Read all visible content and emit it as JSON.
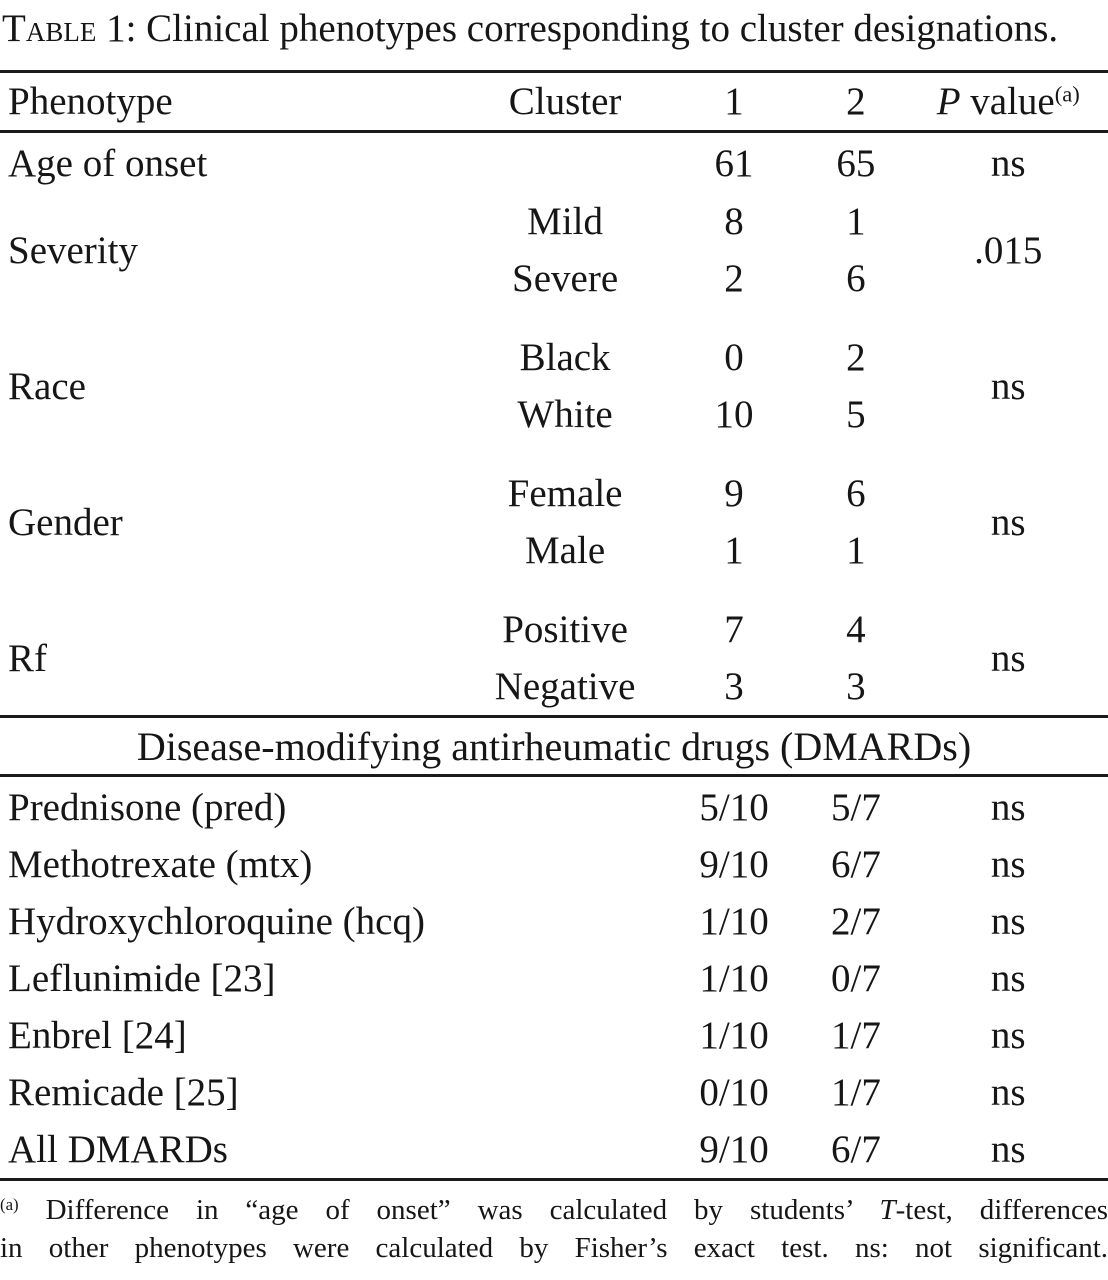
{
  "title": {
    "label": "Table 1:",
    "caption": " Clinical phenotypes corresponding to cluster designations."
  },
  "header": {
    "phenotype": "Phenotype",
    "cluster": "Cluster",
    "col1": "1",
    "col2": "2",
    "pvalue_p": "P",
    "pvalue_rest": " value",
    "pvalue_sup": "(a)"
  },
  "phenotypes": [
    {
      "label": "Age of onset",
      "p": "ns",
      "rows": [
        {
          "name": "",
          "c1": "61",
          "c2": "65"
        }
      ]
    },
    {
      "label": "Severity",
      "p": ".015",
      "rows": [
        {
          "name": "Mild",
          "c1": "8",
          "c2": "1"
        },
        {
          "name": "Severe",
          "c1": "2",
          "c2": "6"
        }
      ]
    },
    {
      "label": "Race",
      "p": "ns",
      "rows": [
        {
          "name": "Black",
          "c1": "0",
          "c2": "2"
        },
        {
          "name": "White",
          "c1": "10",
          "c2": "5"
        }
      ]
    },
    {
      "label": "Gender",
      "p": "ns",
      "rows": [
        {
          "name": "Female",
          "c1": "9",
          "c2": "6"
        },
        {
          "name": "Male",
          "c1": "1",
          "c2": "1"
        }
      ]
    },
    {
      "label": "Rf",
      "p": "ns",
      "rows": [
        {
          "name": "Positive",
          "c1": "7",
          "c2": "4"
        },
        {
          "name": "Negative",
          "c1": "3",
          "c2": "3"
        }
      ]
    }
  ],
  "section_header": "Disease-modifying antirheumatic drugs (DMARDs)",
  "dmards": [
    {
      "label": "Prednisone (pred)",
      "c1": "5/10",
      "c2": "5/7",
      "p": "ns"
    },
    {
      "label": "Methotrexate (mtx)",
      "c1": "9/10",
      "c2": "6/7",
      "p": "ns"
    },
    {
      "label": "Hydroxychloroquine (hcq)",
      "c1": "1/10",
      "c2": "2/7",
      "p": "ns"
    },
    {
      "label": "Leflunimide [23]",
      "c1": "1/10",
      "c2": "0/7",
      "p": "ns"
    },
    {
      "label": "Enbrel [24]",
      "c1": "1/10",
      "c2": "1/7",
      "p": "ns"
    },
    {
      "label": "Remicade [25]",
      "c1": "0/10",
      "c2": "1/7",
      "p": "ns"
    },
    {
      "label": "All DMARDs",
      "c1": "9/10",
      "c2": "6/7",
      "p": "ns"
    }
  ],
  "footnote": {
    "sup": "(a)",
    "line1_a": " Difference in “age of onset” was calculated by students’ ",
    "line1_italic": "T",
    "line1_b": "-test, differences",
    "line2": "in other phenotypes were calculated by Fisher’s exact test. ns: not significant."
  }
}
